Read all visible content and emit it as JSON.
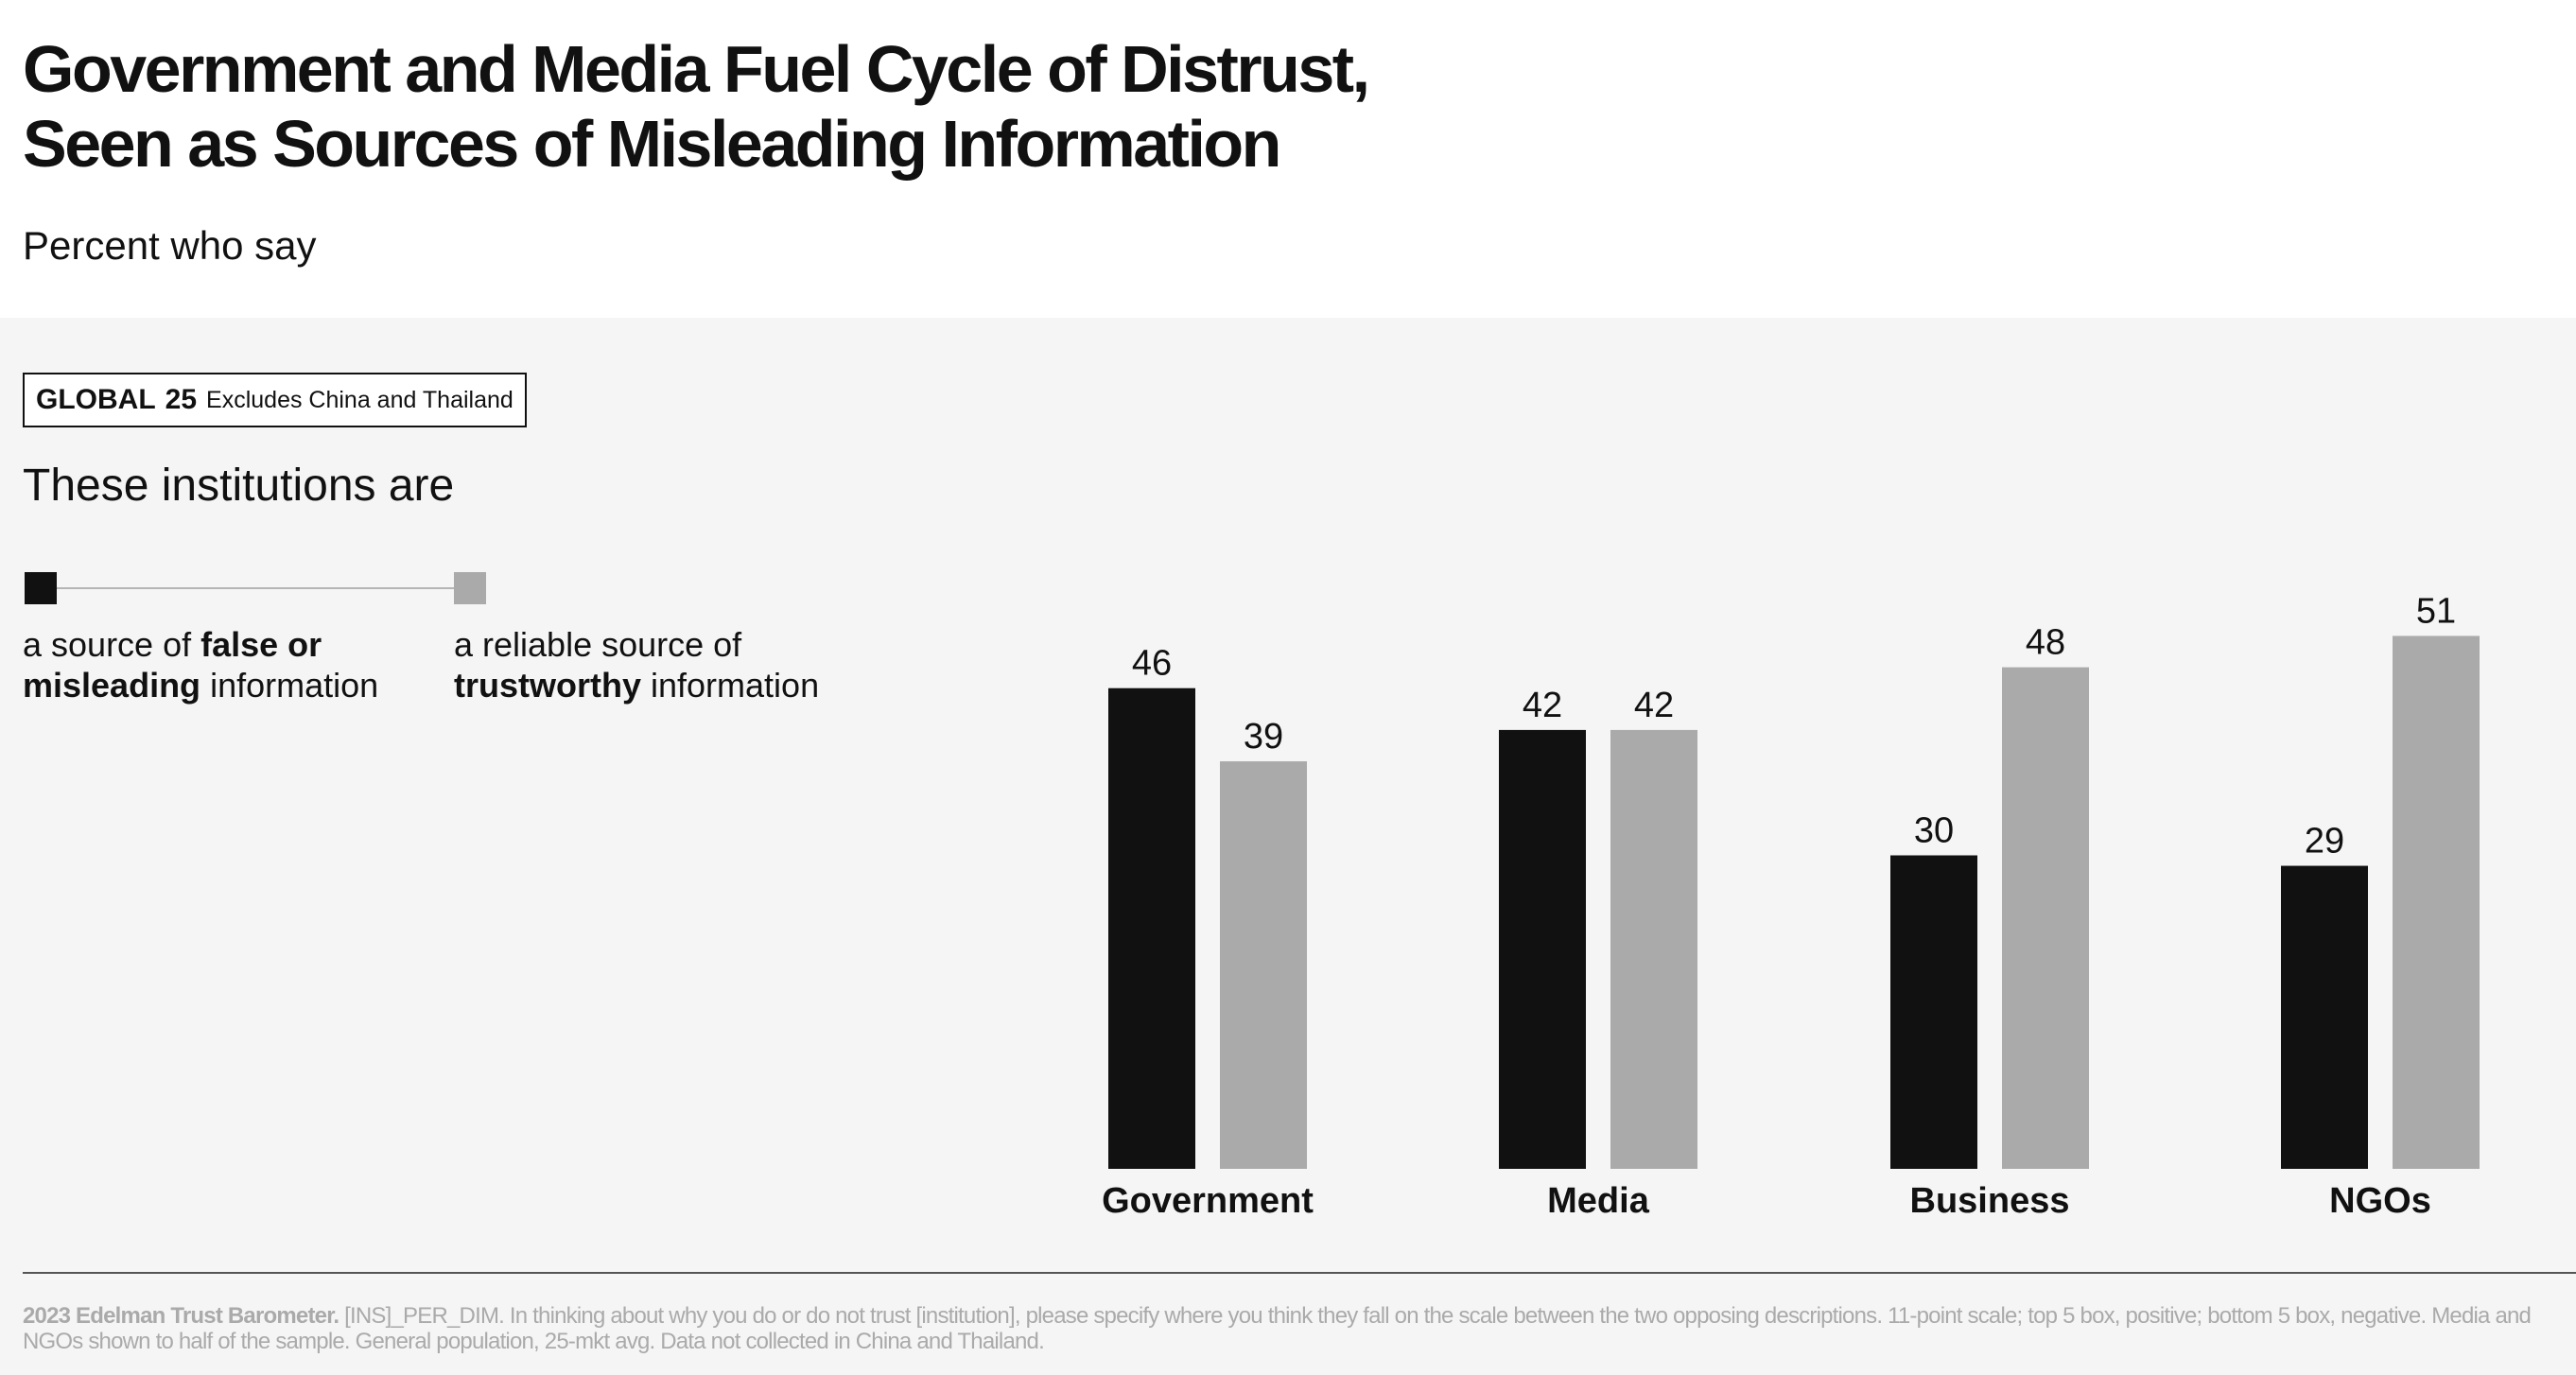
{
  "header": {
    "title_line1": "Government and Media Fuel Cycle of Distrust,",
    "title_line2": "Seen as Sources of Misleading Information",
    "subtitle": "Percent who say"
  },
  "tag": {
    "region": "GLOBAL",
    "count": "25",
    "note": "Excludes China and Thailand"
  },
  "lead": "These institutions are",
  "legend": {
    "left": {
      "pre": "a source of ",
      "bold1": "false or",
      "bold2": "misleading",
      "post": " information",
      "color": "#111111"
    },
    "right": {
      "pre": "a reliable source of",
      "bold": "trustworthy",
      "post": " information",
      "color": "#aaaaaa"
    }
  },
  "chart_data": {
    "type": "bar",
    "categories": [
      "Government",
      "Media",
      "Business",
      "NGOs"
    ],
    "series": [
      {
        "name": "a source of false or misleading information",
        "values": [
          46,
          42,
          30,
          29
        ],
        "color": "#111111"
      },
      {
        "name": "a reliable source of trustworthy information",
        "values": [
          39,
          42,
          48,
          51
        ],
        "color": "#aaaaaa"
      }
    ],
    "title": "Government and Media Fuel Cycle of Distrust, Seen as Sources of Misleading Information",
    "subtitle": "Percent who say",
    "ylim": [
      0,
      51
    ],
    "grid": false,
    "legend_position": "top-left"
  },
  "footnote": {
    "bold": "2023 Edelman Trust Barometer.",
    "text": " [INS]_PER_DIM. In thinking about why you do or do not trust [institution], please specify where you think they fall on the scale between the two opposing descriptions. 11-point scale; top 5 box, positive; bottom 5 box, negative. Media and NGOs shown to half of the sample. General population, 25-mkt avg. Data not collected in China and Thailand."
  }
}
